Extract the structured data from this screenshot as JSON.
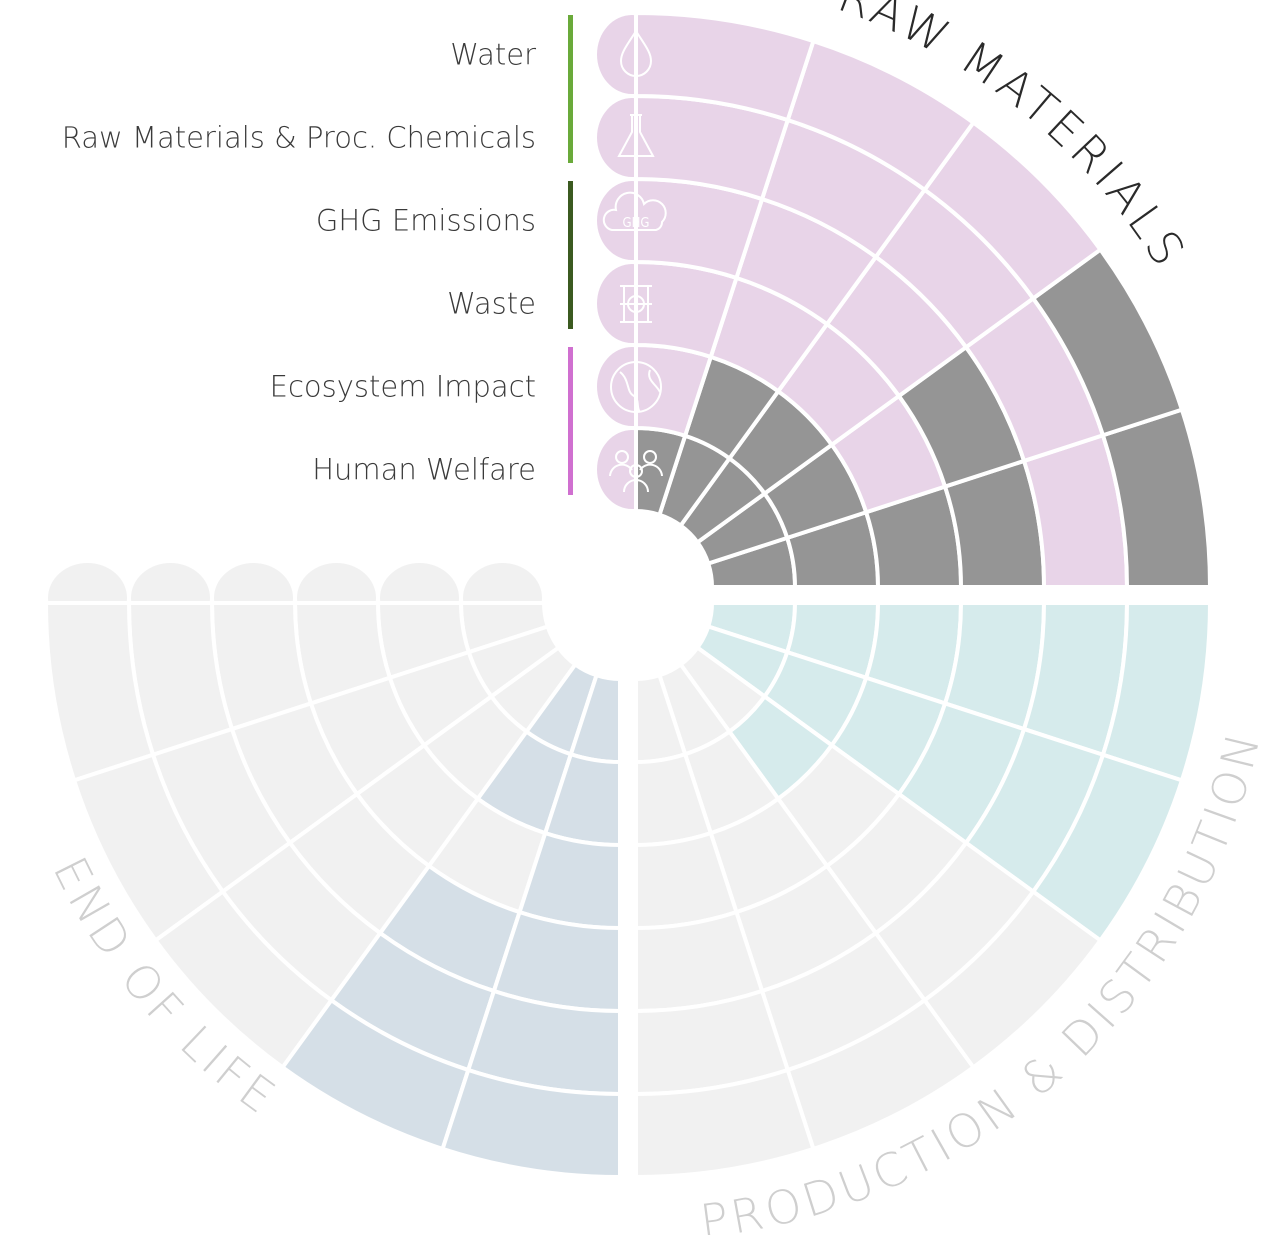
{
  "rows": [
    {
      "label": "Water"
    },
    {
      "label": "Raw Materials & Proc. Chemicals"
    },
    {
      "label": "GHG Emissions",
      "icon_text": "GHG"
    },
    {
      "label": "Waste"
    },
    {
      "label": "Ecosystem Impact"
    },
    {
      "label": "Human Welfare"
    }
  ],
  "group_colors": [
    "#6aaa3a",
    "#3b5a20",
    "#d070d0"
  ],
  "quadrants": [
    {
      "title": "RAW MATERIALS",
      "title_color": "#2a2a2a",
      "tab_color": "#e8d4e8",
      "cells": [
        [
          "#959595",
          "#959595",
          "#959595",
          "#959595",
          "#959595"
        ],
        [
          "#959595",
          "#959595",
          "#959595",
          "#959595",
          "#e8d4e8"
        ],
        [
          "#959595",
          "#e8d4e8",
          "#e8d4e8",
          "#e8d4e8",
          "#e8d4e8"
        ],
        [
          "#959595",
          "#959595",
          "#e8d4e8",
          "#e8d4e8",
          "#e8d4e8"
        ],
        [
          "#e8d4e8",
          "#e8d4e8",
          "#e8d4e8",
          "#e8d4e8",
          "#e8d4e8"
        ],
        [
          "#959595",
          "#959595",
          "#e8d4e8",
          "#e8d4e8",
          "#e8d4e8"
        ]
      ]
    },
    {
      "title": "PRODUCTION & DISTRIBUTION",
      "title_color": "#cfcfcf",
      "cells": [
        [
          "#d6ebec",
          "#d6ebec",
          "#f1f1f1",
          "#f1f1f1",
          "#f1f1f1"
        ],
        [
          "#d6ebec",
          "#d6ebec",
          "#d6ebec",
          "#f1f1f1",
          "#f1f1f1"
        ],
        [
          "#d6ebec",
          "#d6ebec",
          "#f1f1f1",
          "#f1f1f1",
          "#f1f1f1"
        ],
        [
          "#d6ebec",
          "#d6ebec",
          "#f1f1f1",
          "#f1f1f1",
          "#f1f1f1"
        ],
        [
          "#d6ebec",
          "#d6ebec",
          "#f1f1f1",
          "#f1f1f1",
          "#f1f1f1"
        ],
        [
          "#d6ebec",
          "#d6ebec",
          "#f1f1f1",
          "#f1f1f1",
          "#f1f1f1"
        ]
      ]
    },
    {
      "title": "END OF LIFE",
      "title_color": "#cfcfcf",
      "tab_color": "#f1f1f1",
      "cells": [
        [
          "#f1f1f1",
          "#f1f1f1",
          "#f1f1f1",
          "#d5dfe7",
          "#d5dfe7"
        ],
        [
          "#f1f1f1",
          "#f1f1f1",
          "#f1f1f1",
          "#d5dfe7",
          "#d5dfe7"
        ],
        [
          "#f1f1f1",
          "#f1f1f1",
          "#f1f1f1",
          "#f1f1f1",
          "#d5dfe7"
        ],
        [
          "#f1f1f1",
          "#f1f1f1",
          "#f1f1f1",
          "#d5dfe7",
          "#d5dfe7"
        ],
        [
          "#f1f1f1",
          "#f1f1f1",
          "#f1f1f1",
          "#d5dfe7",
          "#d5dfe7"
        ],
        [
          "#f1f1f1",
          "#f1f1f1",
          "#f1f1f1",
          "#d5dfe7",
          "#d5dfe7"
        ]
      ]
    }
  ]
}
